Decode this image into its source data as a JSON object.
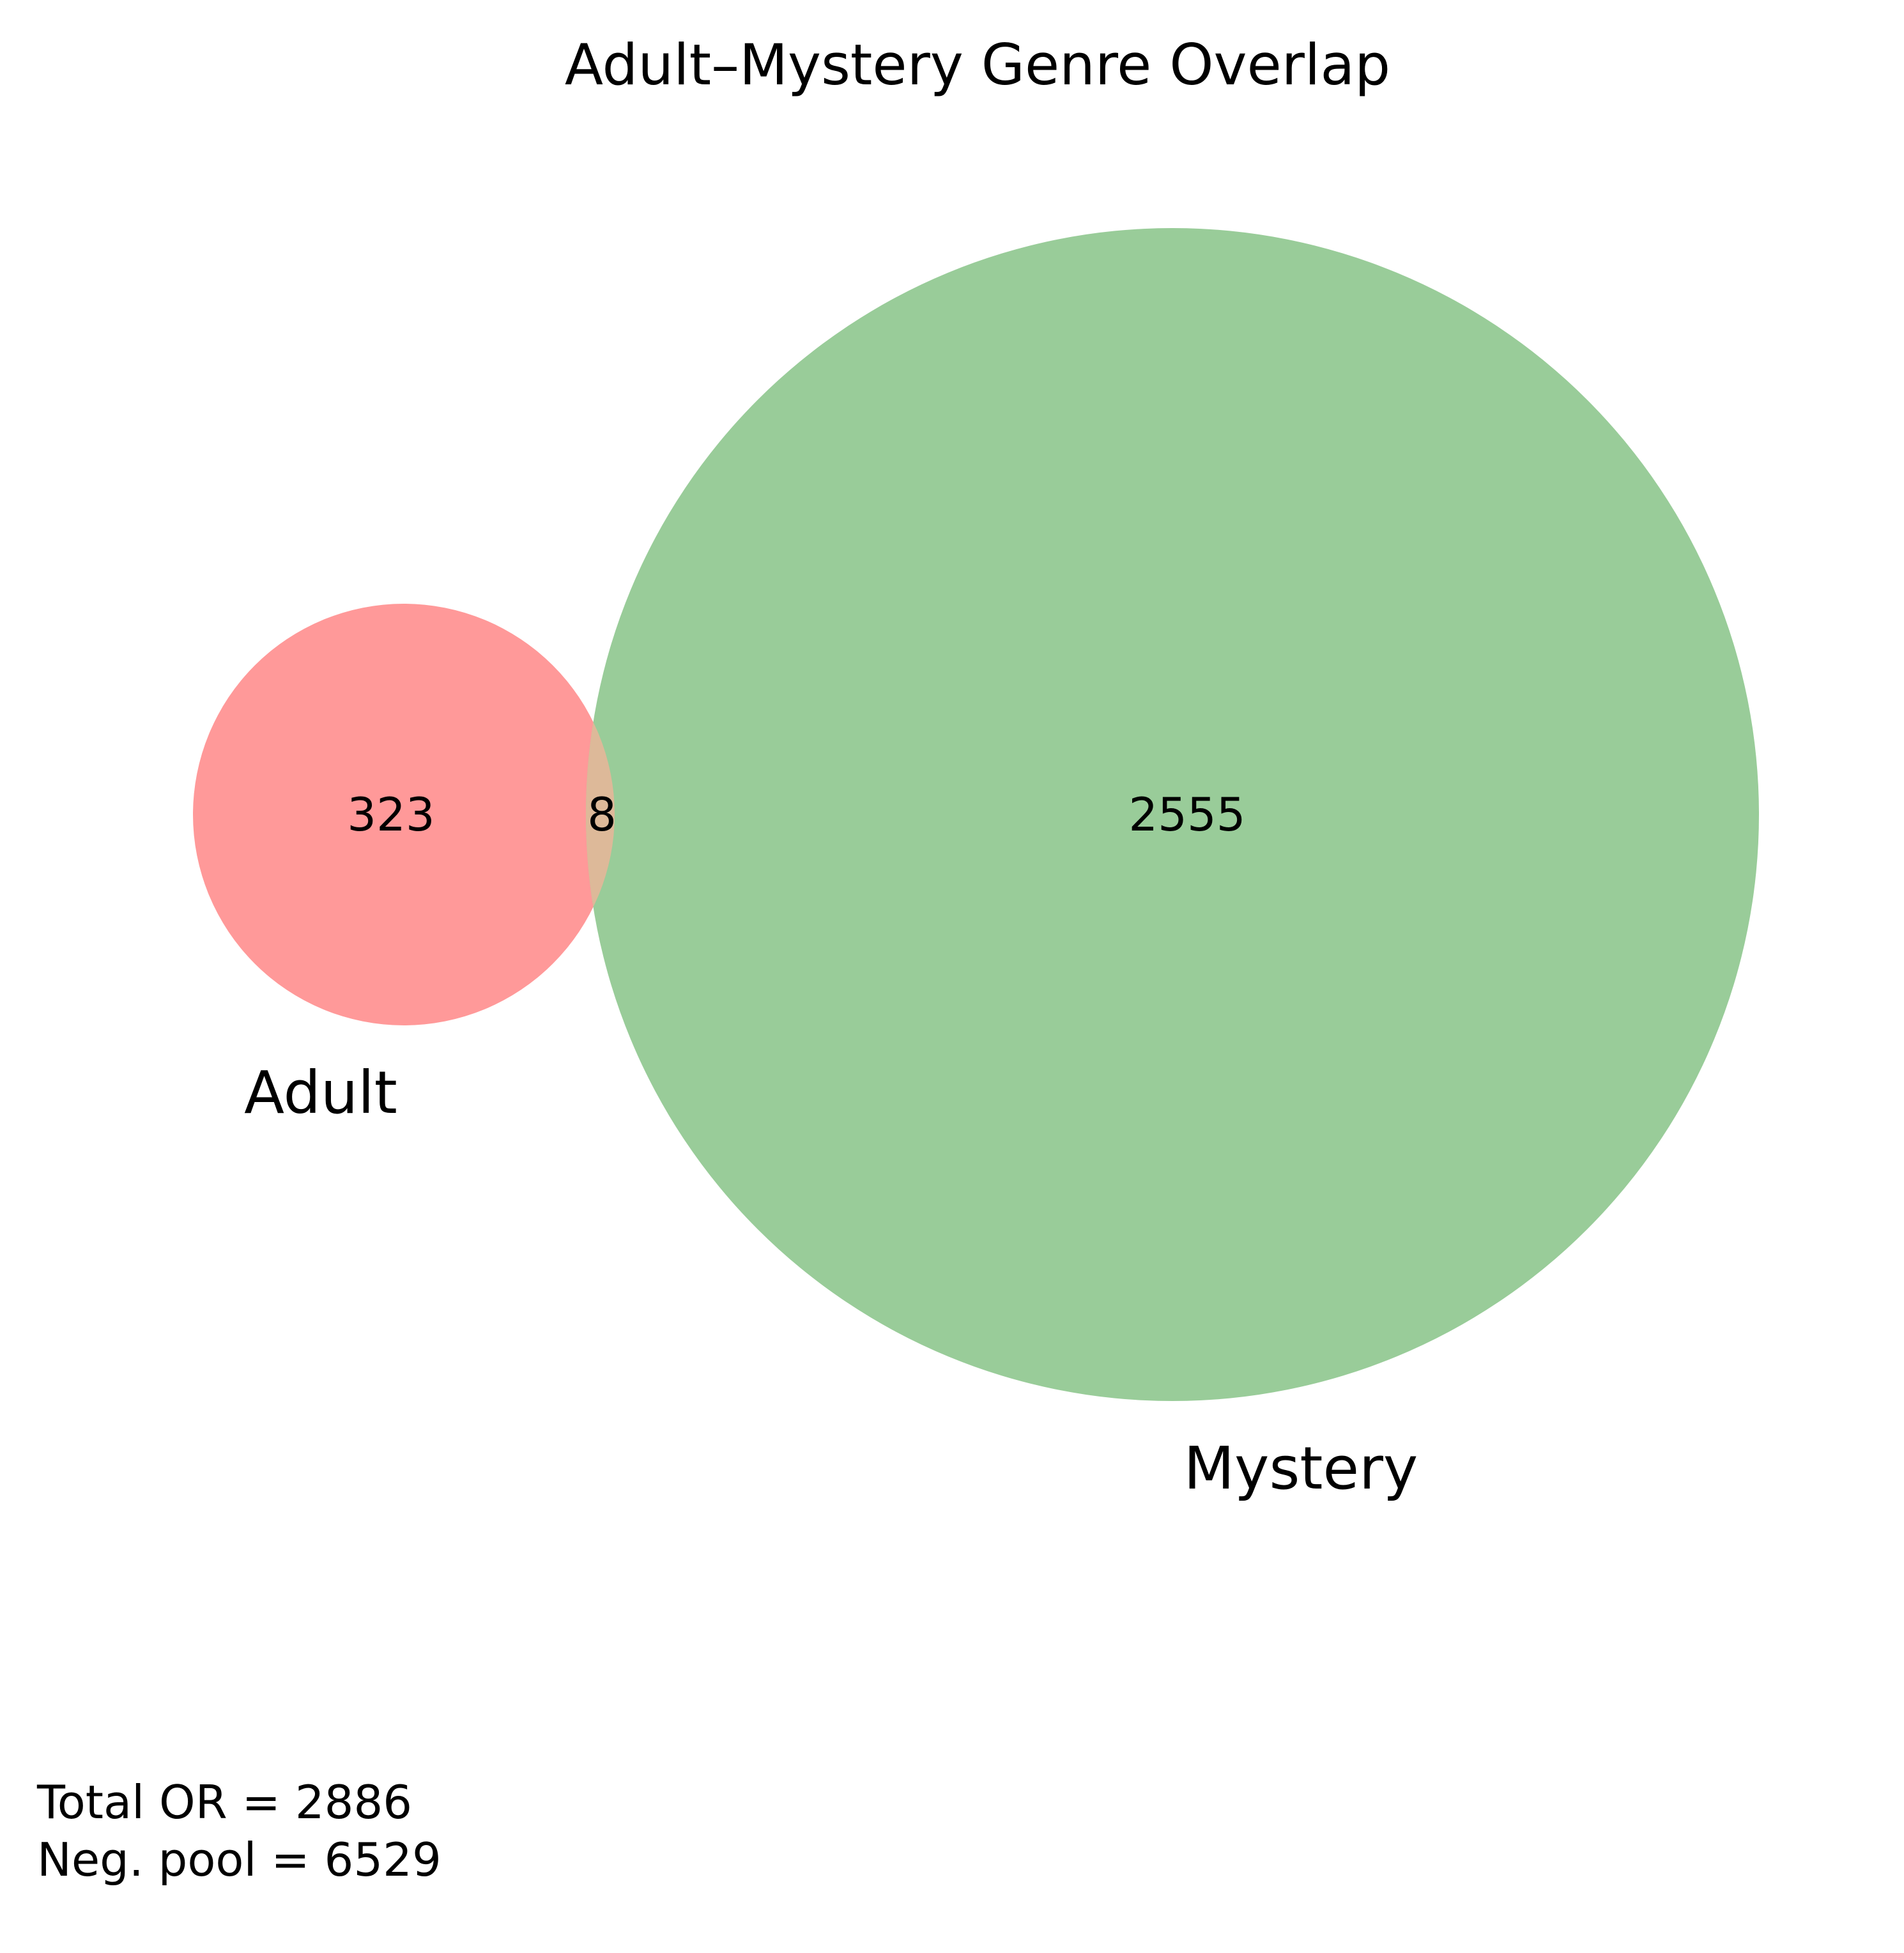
{
  "title": "Adult–Mystery Genre Overlap",
  "sets": [
    {
      "name": "Adult",
      "label": "Adult",
      "only_count": "323",
      "color": "#ff9999"
    },
    {
      "name": "Mystery",
      "label": "Mystery",
      "only_count": "2555",
      "color": "#99cc99"
    }
  ],
  "intersection": {
    "count": "8",
    "color": "#ddb999"
  },
  "footer": {
    "total_line": "Total OR = 2886",
    "neg_pool_line": "Neg. pool = 6529"
  }
}
